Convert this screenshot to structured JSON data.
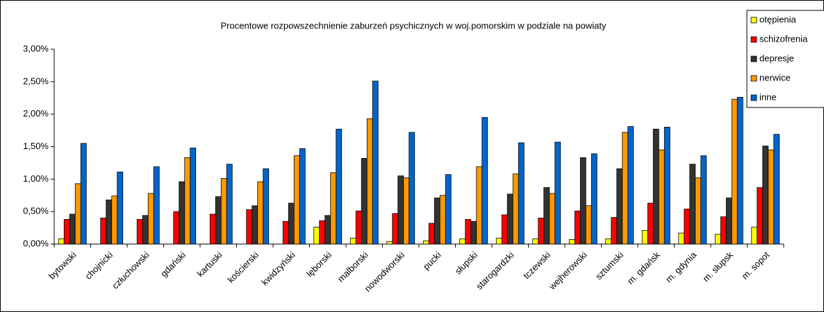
{
  "chart_data": {
    "type": "bar",
    "title": "Procentowe rozpowszechnienie zaburzeń psychicznych w woj.pomorskim w podziale na powiaty",
    "categories": [
      "bytowski",
      "chojnicki",
      "człuchowski",
      "gdański",
      "kartuski",
      "kościerski",
      "kwidzyński",
      "lęborski",
      "malborski",
      "nowodworski",
      "pucki",
      "słupski",
      "starogardzki",
      "tczewski",
      "wejherowski",
      "sztumski",
      "m. gdańsk",
      "m. gdynia",
      "m. słupsk",
      "m. sopot"
    ],
    "series": [
      {
        "name": "otępienia",
        "color": "#ffff00",
        "values": [
          0.08,
          0,
          0,
          0,
          0,
          0,
          0,
          0.26,
          0.09,
          0.04,
          0.05,
          0.08,
          0.09,
          0.08,
          0.07,
          0.08,
          0.21,
          0.17,
          0.15,
          0.26
        ]
      },
      {
        "name": "schizofrenia",
        "color": "#ff0000",
        "values": [
          0.38,
          0.4,
          0.38,
          0.5,
          0.46,
          0.53,
          0.35,
          0.36,
          0.51,
          0.47,
          0.32,
          0.38,
          0.45,
          0.4,
          0.51,
          0.41,
          0.63,
          0.54,
          0.42,
          0.87
        ]
      },
      {
        "name": "depresje",
        "color": "#333333",
        "values": [
          0.46,
          0.68,
          0.44,
          0.96,
          0.73,
          0.59,
          0.63,
          0.44,
          1.32,
          1.05,
          0.71,
          0.35,
          0.77,
          0.87,
          1.33,
          1.16,
          1.77,
          1.23,
          0.71,
          1.51
        ]
      },
      {
        "name": "nerwice",
        "color": "#ff9900",
        "values": [
          0.93,
          0.74,
          0.78,
          1.33,
          1.01,
          0.96,
          1.36,
          1.1,
          1.93,
          1.02,
          0.75,
          1.19,
          1.08,
          0.78,
          0.59,
          1.72,
          1.45,
          1.02,
          2.23,
          1.45
        ]
      },
      {
        "name": "inne",
        "color": "#0066cc",
        "values": [
          1.55,
          1.11,
          1.19,
          1.48,
          1.23,
          1.16,
          1.47,
          1.77,
          2.51,
          1.72,
          1.07,
          1.95,
          1.56,
          1.57,
          1.39,
          1.81,
          1.8,
          1.36,
          2.26,
          1.69
        ]
      }
    ],
    "ylim": [
      0,
      3
    ],
    "yticks": [
      {
        "value": 0,
        "label": "0,00%"
      },
      {
        "value": 0.5,
        "label": "0,50%"
      },
      {
        "value": 1,
        "label": "1,00%"
      },
      {
        "value": 1.5,
        "label": "1,50%"
      },
      {
        "value": 2,
        "label": "2,00%"
      },
      {
        "value": 2.5,
        "label": "2,50%"
      },
      {
        "value": 3,
        "label": "3,00%"
      }
    ],
    "grid": false,
    "legend": "top-right"
  }
}
